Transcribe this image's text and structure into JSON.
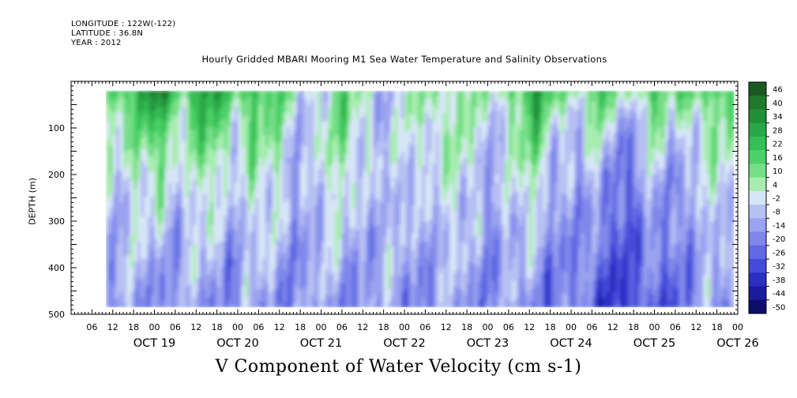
{
  "header": {
    "longitude": "LONGITUDE : 122W(-122)",
    "latitude": "LATITUDE : 36.8N",
    "year": "YEAR : 2012"
  },
  "chart_data": {
    "type": "heatmap",
    "title": "Hourly Gridded MBARI Mooring M1 Sea Water Temperature and Salinity Observations",
    "xlabel": "V Component of Water Velocity (cm s-1)",
    "ylabel": "DEPTH (m)",
    "x_hour_ticks": [
      "06",
      "12",
      "18",
      "00",
      "06",
      "12",
      "18",
      "00",
      "06",
      "12",
      "18",
      "00",
      "06",
      "12",
      "18",
      "00",
      "06",
      "12",
      "18",
      "00",
      "06",
      "12",
      "18",
      "00",
      "06",
      "12",
      "18",
      "00",
      "06",
      "12",
      "18",
      "00"
    ],
    "x_date_labels": [
      "OCT 19",
      "OCT 20",
      "OCT 21",
      "OCT 22",
      "OCT 23",
      "OCT 24",
      "OCT 25",
      "OCT 26"
    ],
    "x_range_hours_from_oct18_00": [
      0,
      192
    ],
    "data_x_range_hours_from_oct18_00": [
      10,
      191
    ],
    "y_ticks": [
      100,
      200,
      300,
      400,
      500
    ],
    "ylim": [
      500,
      0
    ],
    "data_depth_range": [
      20,
      485
    ],
    "y_reversed": true,
    "colorbar_levels": [
      46,
      40,
      34,
      28,
      22,
      16,
      10,
      4,
      -2,
      -8,
      -14,
      -20,
      -26,
      -32,
      -38,
      -44,
      -50
    ],
    "colorbar_colors": [
      "#1a5a22",
      "#1f7a2c",
      "#22903a",
      "#2aa847",
      "#35bf55",
      "#4dd068",
      "#75de87",
      "#a7edb0",
      "#d7e6f6",
      "#b7c0f3",
      "#9aa3ef",
      "#7f88ea",
      "#6168e3",
      "#454bd8",
      "#2b2fc2",
      "#1a1c9c",
      "#0d0e6c"
    ],
    "legend": "colorbar-right",
    "grid": false,
    "value_field_summary": "Positive (green) flow dominant in upper 150 m on Oct 20-23 and in near-vertical bands; negative (blue/purple) flow dominant below 250 m and across Oct 24-25."
  }
}
